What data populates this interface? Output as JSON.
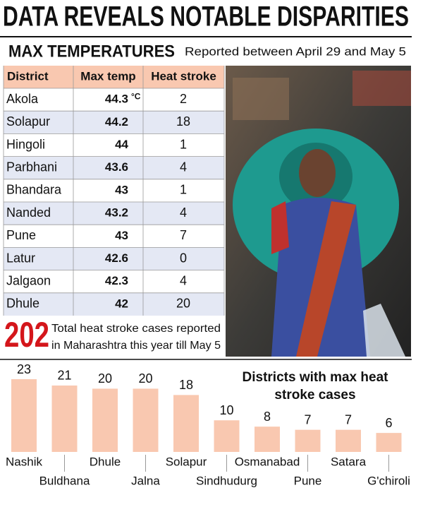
{
  "header": {
    "title": "DATA REVEALS NOTABLE DISPARITIES",
    "section": "MAX TEMPERATURES",
    "subtitle": "Reported between April 29 and May 5"
  },
  "table": {
    "columns": [
      "District",
      "Max temp",
      "Heat stroke"
    ],
    "temp_unit": "°C",
    "rows": [
      [
        "Akola",
        44.3,
        2
      ],
      [
        "Solapur",
        44.2,
        18
      ],
      [
        "Hingoli",
        44,
        1
      ],
      [
        "Parbhani",
        43.6,
        4
      ],
      [
        "Bhandara",
        43,
        1
      ],
      [
        "Nanded",
        43.2,
        4
      ],
      [
        "Pune",
        43,
        7
      ],
      [
        "Latur",
        42.6,
        0
      ],
      [
        "Jalgaon",
        42.3,
        4
      ],
      [
        "Dhule",
        42,
        20
      ]
    ]
  },
  "total": {
    "value": 202,
    "lines": [
      "Total heat stroke cases reported",
      "in Maharashtra this year till May 5"
    ]
  },
  "chart_data": {
    "type": "bar",
    "title": [
      "Districts with max heat",
      "stroke cases"
    ],
    "categories": [
      "Nashik",
      "Buldhana",
      "Dhule",
      "Jalna",
      "Solapur",
      "Sindhudurg",
      "Osmanabad",
      "Pune",
      "Satara",
      "G'chiroli"
    ],
    "values": [
      23,
      21,
      20,
      20,
      18,
      10,
      8,
      7,
      7,
      6
    ],
    "color": "#f9c8b0"
  }
}
